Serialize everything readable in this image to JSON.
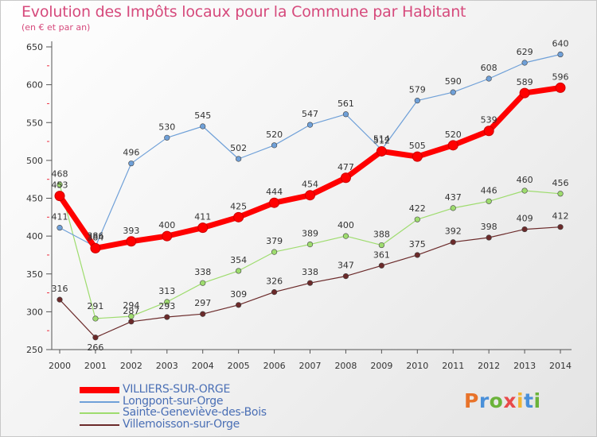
{
  "title": "Evolution des Impôts locaux pour la Commune par Habitant",
  "subtitle": "(en € et par an)",
  "brand": "Proxiti",
  "chart_data": {
    "type": "line",
    "title": "Evolution des Impôts locaux pour la Commune par Habitant",
    "ylabel": "(en € et par an)",
    "xlabel": "",
    "ylim": [
      250,
      650
    ],
    "yticks": [
      250,
      300,
      350,
      400,
      450,
      500,
      550,
      600,
      650
    ],
    "categories": [
      "2000",
      "2001",
      "2002",
      "2003",
      "2004",
      "2005",
      "2006",
      "2007",
      "2008",
      "2009",
      "2010",
      "2011",
      "2012",
      "2013",
      "2014"
    ],
    "series": [
      {
        "name": "VILLIERS-SUR-ORGE",
        "color": "#ff0000",
        "values": [
          453,
          384,
          393,
          400,
          411,
          425,
          444,
          454,
          477,
          512,
          505,
          520,
          539,
          589,
          596
        ]
      },
      {
        "name": "Longpont-sur-Orge",
        "color": "#6fa0d8",
        "values": [
          411,
          386,
          496,
          530,
          545,
          502,
          520,
          547,
          561,
          514,
          579,
          590,
          608,
          629,
          640
        ]
      },
      {
        "name": "Sainte-Geneviève-des-Bois",
        "color": "#9edc6e",
        "values": [
          468,
          291,
          294,
          313,
          338,
          354,
          379,
          389,
          400,
          388,
          422,
          437,
          446,
          460,
          456
        ]
      },
      {
        "name": "Villemoisson-sur-Orge",
        "color": "#6b2a2a",
        "values": [
          316,
          266,
          287,
          293,
          297,
          309,
          326,
          338,
          347,
          361,
          375,
          392,
          398,
          409,
          412
        ]
      }
    ]
  }
}
